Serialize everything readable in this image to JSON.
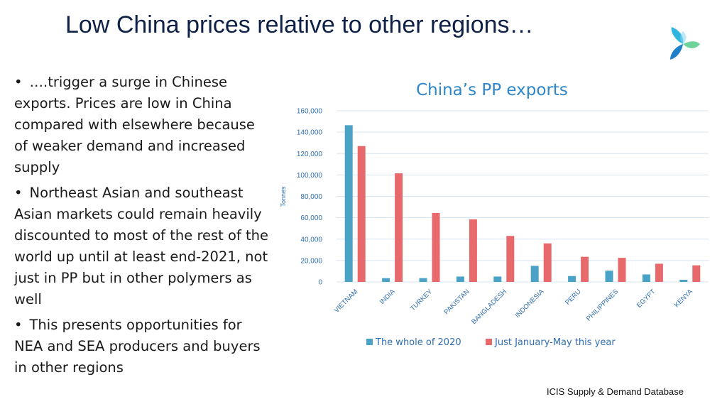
{
  "slide": {
    "title": "Low China prices relative to other regions…",
    "bullets": [
      "….trigger a surge in Chinese exports. Prices are low in China compared with elsewhere because of weaker demand and increased supply",
      "Northeast Asian and southeast Asian markets could remain heavily discounted to most of the rest of the world up until at least end-2021, not just in PP but in other polymers as well",
      "This presents opportunities for NEA and SEA producers and buyers in other regions"
    ],
    "bullet_glyph": "•",
    "source": "ICIS Supply & Demand Database",
    "logo_icon": "icis-logo-icon"
  },
  "colors": {
    "title": "#0f2147",
    "series_2020": "#4aa3c7",
    "series_2021": "#e8696b",
    "chart_text": "#2e6db0",
    "chart_title": "#2e86c8",
    "grid": "#d6e4f2"
  },
  "chart_data": {
    "type": "bar",
    "title": "China’s PP exports",
    "xlabel": "",
    "ylabel": "Tonnes",
    "ylim": [
      0,
      160000
    ],
    "yticks": [
      0,
      20000,
      40000,
      60000,
      80000,
      100000,
      120000,
      140000,
      160000
    ],
    "ytick_labels": [
      "0",
      "20,000",
      "40,000",
      "60,000",
      "80,000",
      "100,000",
      "120,000",
      "140,000",
      "160,000"
    ],
    "categories": [
      "VIETNAM",
      "INDIA",
      "TURKEY",
      "PAKISTAN",
      "BANGLADESH",
      "INDONESIA",
      "PERU",
      "PHILIPPINES",
      "EGYPT",
      "KENYA"
    ],
    "series": [
      {
        "name": "The whole of 2020",
        "values": [
          146500,
          3500,
          3500,
          5000,
          5000,
          15000,
          5500,
          10500,
          7000,
          2000
        ]
      },
      {
        "name": "Just January-May this year",
        "values": [
          127000,
          101500,
          64500,
          58500,
          43000,
          36000,
          23500,
          22500,
          17000,
          15500
        ]
      }
    ],
    "grid": true,
    "legend": "bottom"
  }
}
